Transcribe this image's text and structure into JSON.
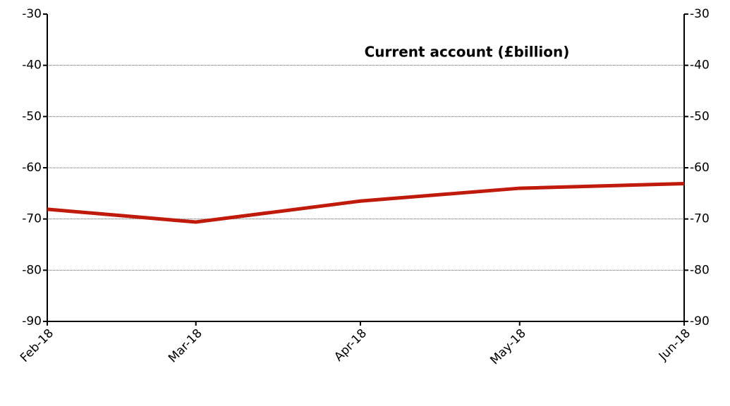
{
  "chart_data": {
    "type": "line",
    "title": "Current account (£billion)",
    "x": [
      "Feb-18",
      "Mar-18",
      "Apr-18",
      "May-18",
      "Jun-18"
    ],
    "series": [
      {
        "name": "Current account",
        "color": "#c01a0c",
        "values": [
          -68.1,
          -70.6,
          -66.5,
          -64.0,
          -63.1
        ]
      }
    ],
    "ylim": [
      -90,
      -30
    ],
    "yticks": [
      -90,
      -80,
      -70,
      -60,
      -50,
      -40,
      -30
    ],
    "y2lim": [
      -90,
      -30
    ],
    "y2ticks": [
      -90,
      -80,
      -70,
      -60,
      -50,
      -40,
      -30
    ],
    "grid": true
  }
}
